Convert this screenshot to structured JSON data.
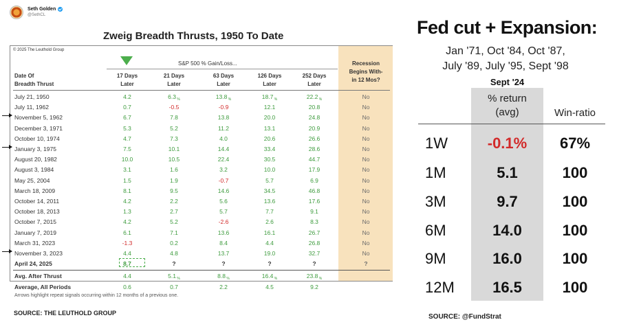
{
  "tweet": {
    "name": "Seth Golden",
    "handle": "@SethCL"
  },
  "left": {
    "title": "Zweig Breadth Thrusts, 1950 To Date",
    "copyright": "© 2025 The Leuthold Group",
    "sp_header": "S&P 500 % Gain/Loss...",
    "headers": {
      "date": [
        "Date Of",
        "Breadth Thrust"
      ],
      "cols": [
        [
          "17 Days",
          "Later"
        ],
        [
          "21 Days",
          "Later"
        ],
        [
          "63 Days",
          "Later"
        ],
        [
          "126 Days",
          "Later"
        ],
        [
          "252 Days",
          "Later"
        ]
      ],
      "recession": [
        "Recession",
        "Begins With-",
        "in 12 Mos?"
      ]
    },
    "rows": [
      {
        "date": "July 21, 1950",
        "v": [
          "4.2",
          "6.3",
          "13.8",
          "18.7",
          "22.2"
        ],
        "rec": "No",
        "arrow": false
      },
      {
        "date": "July 11, 1962",
        "v": [
          "0.7",
          "-0.5",
          "-0.9",
          "12.1",
          "20.8"
        ],
        "rec": "No",
        "arrow": false
      },
      {
        "date": "November 5, 1962",
        "v": [
          "6.7",
          "7.8",
          "13.8",
          "20.0",
          "24.8"
        ],
        "rec": "No",
        "arrow": true
      },
      {
        "date": "December 3, 1971",
        "v": [
          "5.3",
          "5.2",
          "11.2",
          "13.1",
          "20.9"
        ],
        "rec": "No",
        "arrow": false
      },
      {
        "date": "October 10, 1974",
        "v": [
          "4.7",
          "7.3",
          "4.0",
          "20.6",
          "26.6"
        ],
        "rec": "No",
        "arrow": false
      },
      {
        "date": "January 3, 1975",
        "v": [
          "7.5",
          "10.1",
          "14.4",
          "33.4",
          "28.6"
        ],
        "rec": "No",
        "arrow": true
      },
      {
        "date": "August 20, 1982",
        "v": [
          "10.0",
          "10.5",
          "22.4",
          "30.5",
          "44.7"
        ],
        "rec": "No",
        "arrow": false
      },
      {
        "date": "August 3, 1984",
        "v": [
          "3.1",
          "1.6",
          "3.2",
          "10.0",
          "17.9"
        ],
        "rec": "No",
        "arrow": false
      },
      {
        "date": "May 25, 2004",
        "v": [
          "1.5",
          "1.9",
          "-0.7",
          "5.7",
          "6.9"
        ],
        "rec": "No",
        "arrow": false
      },
      {
        "date": "March 18, 2009",
        "v": [
          "8.1",
          "9.5",
          "14.6",
          "34.5",
          "46.8"
        ],
        "rec": "No",
        "arrow": false
      },
      {
        "date": "October 14, 2011",
        "v": [
          "4.2",
          "2.2",
          "5.6",
          "13.6",
          "17.6"
        ],
        "rec": "No",
        "arrow": false
      },
      {
        "date": "October 18, 2013",
        "v": [
          "1.3",
          "2.7",
          "5.7",
          "7.7",
          "9.1"
        ],
        "rec": "No",
        "arrow": false
      },
      {
        "date": "October 7, 2015",
        "v": [
          "4.2",
          "5.2",
          "-2.6",
          "2.6",
          "8.3"
        ],
        "rec": "No",
        "arrow": false
      },
      {
        "date": "January 7, 2019",
        "v": [
          "6.1",
          "7.1",
          "13.6",
          "16.1",
          "26.7"
        ],
        "rec": "No",
        "arrow": false
      },
      {
        "date": "March 31, 2023",
        "v": [
          "-1.3",
          "0.2",
          "8.4",
          "4.4",
          "26.8"
        ],
        "rec": "No",
        "arrow": false
      },
      {
        "date": "November 3, 2023",
        "v": [
          "4.4",
          "4.8",
          "13.7",
          "19.0",
          "32.7"
        ],
        "rec": "No",
        "arrow": true
      }
    ],
    "current": {
      "date": "April 24, 2025",
      "v": [
        "8.7",
        "?",
        "?",
        "?",
        "?"
      ],
      "rec": "?"
    },
    "summary": [
      {
        "label": "Avg. After Thrust",
        "v": [
          "4.4",
          "5.1",
          "8.8",
          "16.4",
          "23.8"
        ]
      },
      {
        "label": "Average, All Periods",
        "v": [
          "0.6",
          "0.7",
          "2.2",
          "4.5",
          "9.2"
        ]
      }
    ],
    "footnote": "Arrows highlight repeat signals occurring within 12 months of a previous one.",
    "source": "SOURCE: THE LEUTHOLD GROUP"
  },
  "right": {
    "title": "Fed cut + Expansion:",
    "dates_line1": "Jan '71, Oct '84, Oct '87,",
    "dates_line2": "July '89, July '95, Sept '98",
    "sept_label": "Sept '24",
    "ret_header": [
      "% return",
      "(avg)"
    ],
    "win_header": "Win-ratio",
    "rows": [
      {
        "period": "1W",
        "ret": "-0.1%",
        "win": "67%",
        "negative": true
      },
      {
        "period": "1M",
        "ret": "5.1",
        "win": "100",
        "negative": false
      },
      {
        "period": "3M",
        "ret": "9.7",
        "win": "100",
        "negative": false
      },
      {
        "period": "6M",
        "ret": "14.0",
        "win": "100",
        "negative": false
      },
      {
        "period": "9M",
        "ret": "16.0",
        "win": "100",
        "negative": false
      },
      {
        "period": "12M",
        "ret": "16.5",
        "win": "100",
        "negative": false
      }
    ],
    "source": "SOURCE: @FundStrat"
  },
  "colors": {
    "positive": "#3d9b3d",
    "negative": "#d22a2a",
    "recession_bg": "#f8e2bd",
    "return_col_bg": "#d9d9d9"
  }
}
